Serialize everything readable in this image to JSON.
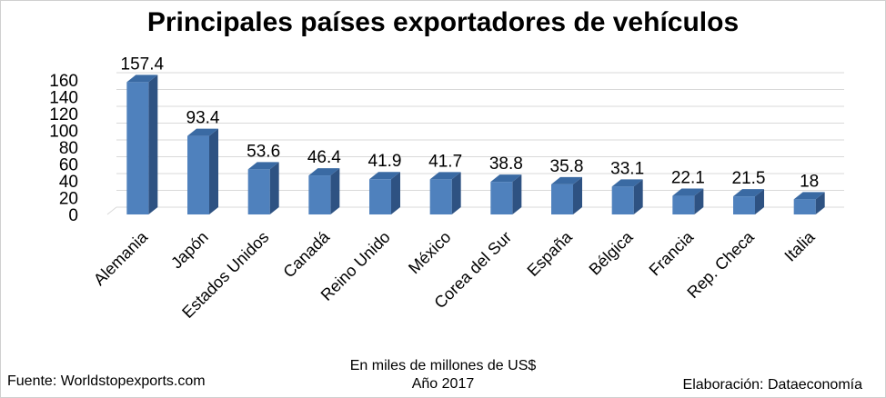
{
  "chart_data": {
    "type": "bar",
    "title": "Principales países exportadores de vehículos",
    "categories": [
      "Alemania",
      "Japón",
      "Estados Unidos",
      "Canadá",
      "Reino Unido",
      "México",
      "Corea del Sur",
      "España",
      "Bélgica",
      "Francia",
      "Rep. Checa",
      "Italia"
    ],
    "values": [
      157.4,
      93.4,
      53.6,
      46.4,
      41.9,
      41.7,
      38.8,
      35.8,
      33.1,
      22.1,
      21.5,
      18
    ],
    "value_labels": [
      "157.4",
      "93.4",
      "53.6",
      "46.4",
      "41.9",
      "41.7",
      "38.8",
      "35.8",
      "33.1",
      "22.1",
      "21.5",
      "18"
    ],
    "yticks": [
      0,
      20,
      40,
      60,
      80,
      100,
      120,
      140,
      160
    ],
    "ylim": [
      0,
      160
    ],
    "xlabel": "",
    "ylabel": "",
    "grid": true,
    "bar_color": "#4f81bd",
    "bar_side_color": "#2e5282",
    "bar_top_color": "#3a6aa3",
    "grid_color": "#d9d9d9"
  },
  "notes": {
    "unit": "En miles de millones de US$",
    "year": "Año 2017",
    "source": "Fuente: Worldstopexports.com",
    "credit": "Elaboración: Dataeconomía"
  }
}
